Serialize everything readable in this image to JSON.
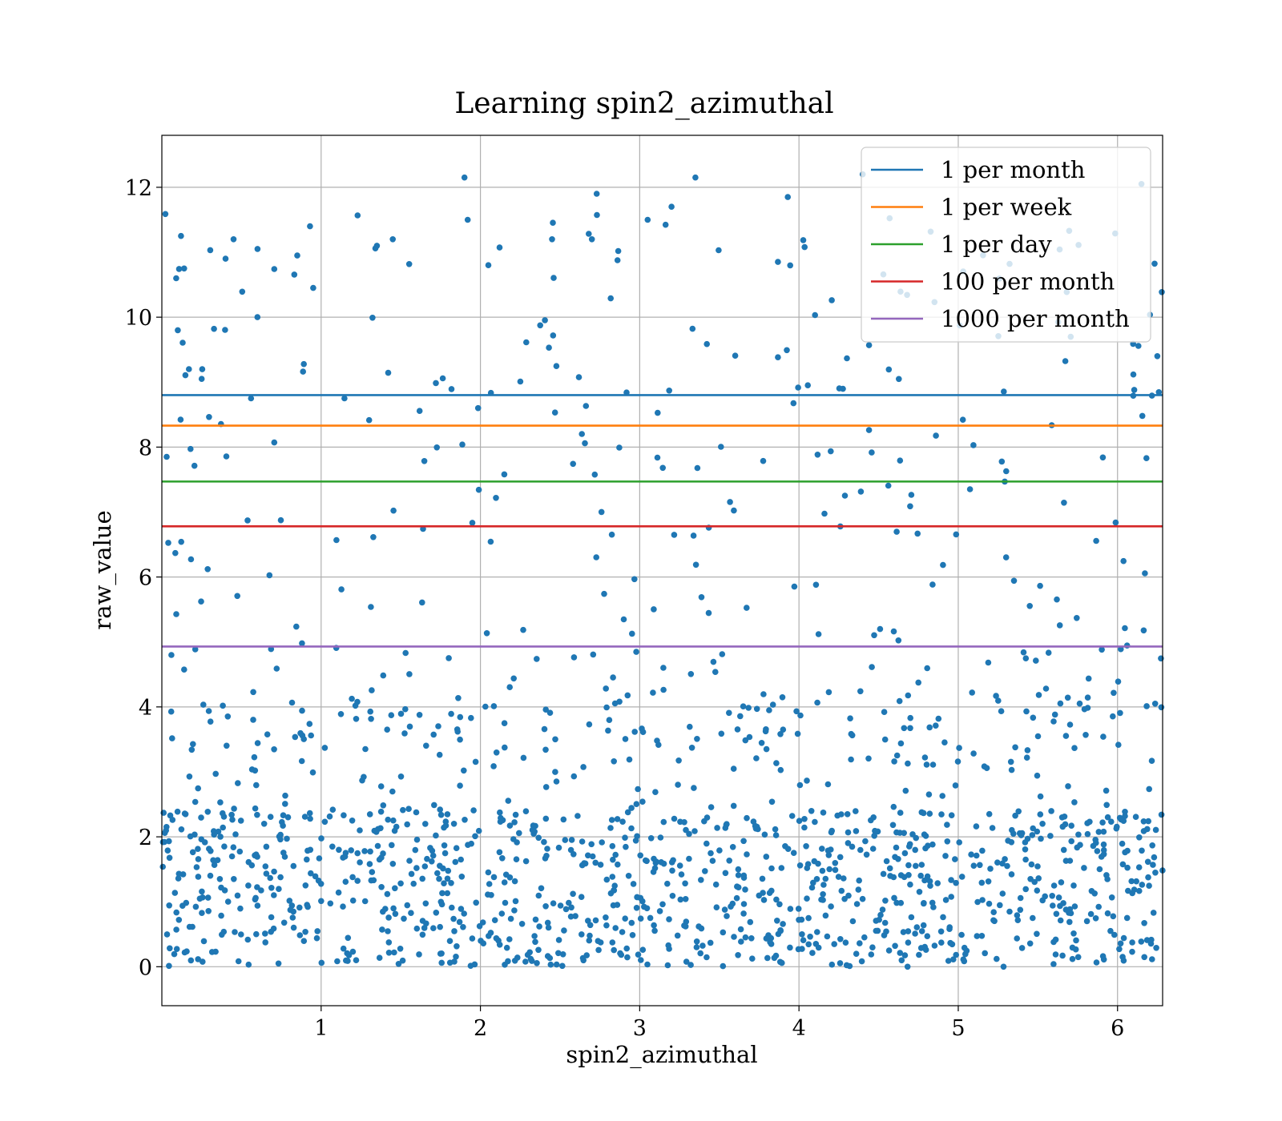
{
  "chart_data": {
    "type": "scatter",
    "title": "Learning spin2_azimuthal",
    "xlabel": "spin2_azimuthal",
    "ylabel": "raw_value",
    "xlim": [
      0,
      6.283
    ],
    "ylim": [
      -0.6,
      12.8
    ],
    "xticks": [
      1,
      2,
      3,
      4,
      5,
      6
    ],
    "yticks": [
      0,
      2,
      4,
      6,
      8,
      10,
      12
    ],
    "grid": true,
    "legend_position": "top-right",
    "scatter_color": "#1f77b4",
    "scatter_count": 1500,
    "scatter_sample": [
      {
        "x": 0.03,
        "y": 7.85
      },
      {
        "x": 0.06,
        "y": 4.8
      },
      {
        "x": 0.09,
        "y": 10.6
      },
      {
        "x": 0.1,
        "y": 9.8
      },
      {
        "x": 0.12,
        "y": 11.25
      },
      {
        "x": 0.14,
        "y": 10.75
      },
      {
        "x": 0.17,
        "y": 9.2
      },
      {
        "x": 0.25,
        "y": 9.05
      },
      {
        "x": 0.4,
        "y": 10.9
      },
      {
        "x": 0.45,
        "y": 11.2
      },
      {
        "x": 0.56,
        "y": 8.75
      },
      {
        "x": 0.6,
        "y": 10.0
      },
      {
        "x": 0.85,
        "y": 10.95
      },
      {
        "x": 0.93,
        "y": 11.4
      },
      {
        "x": 0.95,
        "y": 10.45
      },
      {
        "x": 1.35,
        "y": 11.1
      },
      {
        "x": 1.45,
        "y": 11.2
      },
      {
        "x": 1.9,
        "y": 12.15
      },
      {
        "x": 1.92,
        "y": 11.5
      },
      {
        "x": 2.05,
        "y": 10.8
      },
      {
        "x": 2.45,
        "y": 11.2
      },
      {
        "x": 2.73,
        "y": 11.9
      },
      {
        "x": 2.7,
        "y": 11.2
      },
      {
        "x": 3.05,
        "y": 11.5
      },
      {
        "x": 3.2,
        "y": 11.7
      },
      {
        "x": 3.35,
        "y": 12.15
      },
      {
        "x": 3.93,
        "y": 11.85
      },
      {
        "x": 4.4,
        "y": 12.2
      },
      {
        "x": 6.15,
        "y": 12.05
      },
      {
        "x": 6.25,
        "y": 9.4
      }
    ],
    "hlines": [
      {
        "name": "1 per month",
        "y": 8.8,
        "color": "#1f77b4"
      },
      {
        "name": "1 per week",
        "y": 8.33,
        "color": "#ff7f0e"
      },
      {
        "name": "1 per day",
        "y": 7.47,
        "color": "#2ca02c"
      },
      {
        "name": "100 per month",
        "y": 6.78,
        "color": "#d62728"
      },
      {
        "name": "1000 per month",
        "y": 4.93,
        "color": "#9467bd"
      }
    ]
  }
}
